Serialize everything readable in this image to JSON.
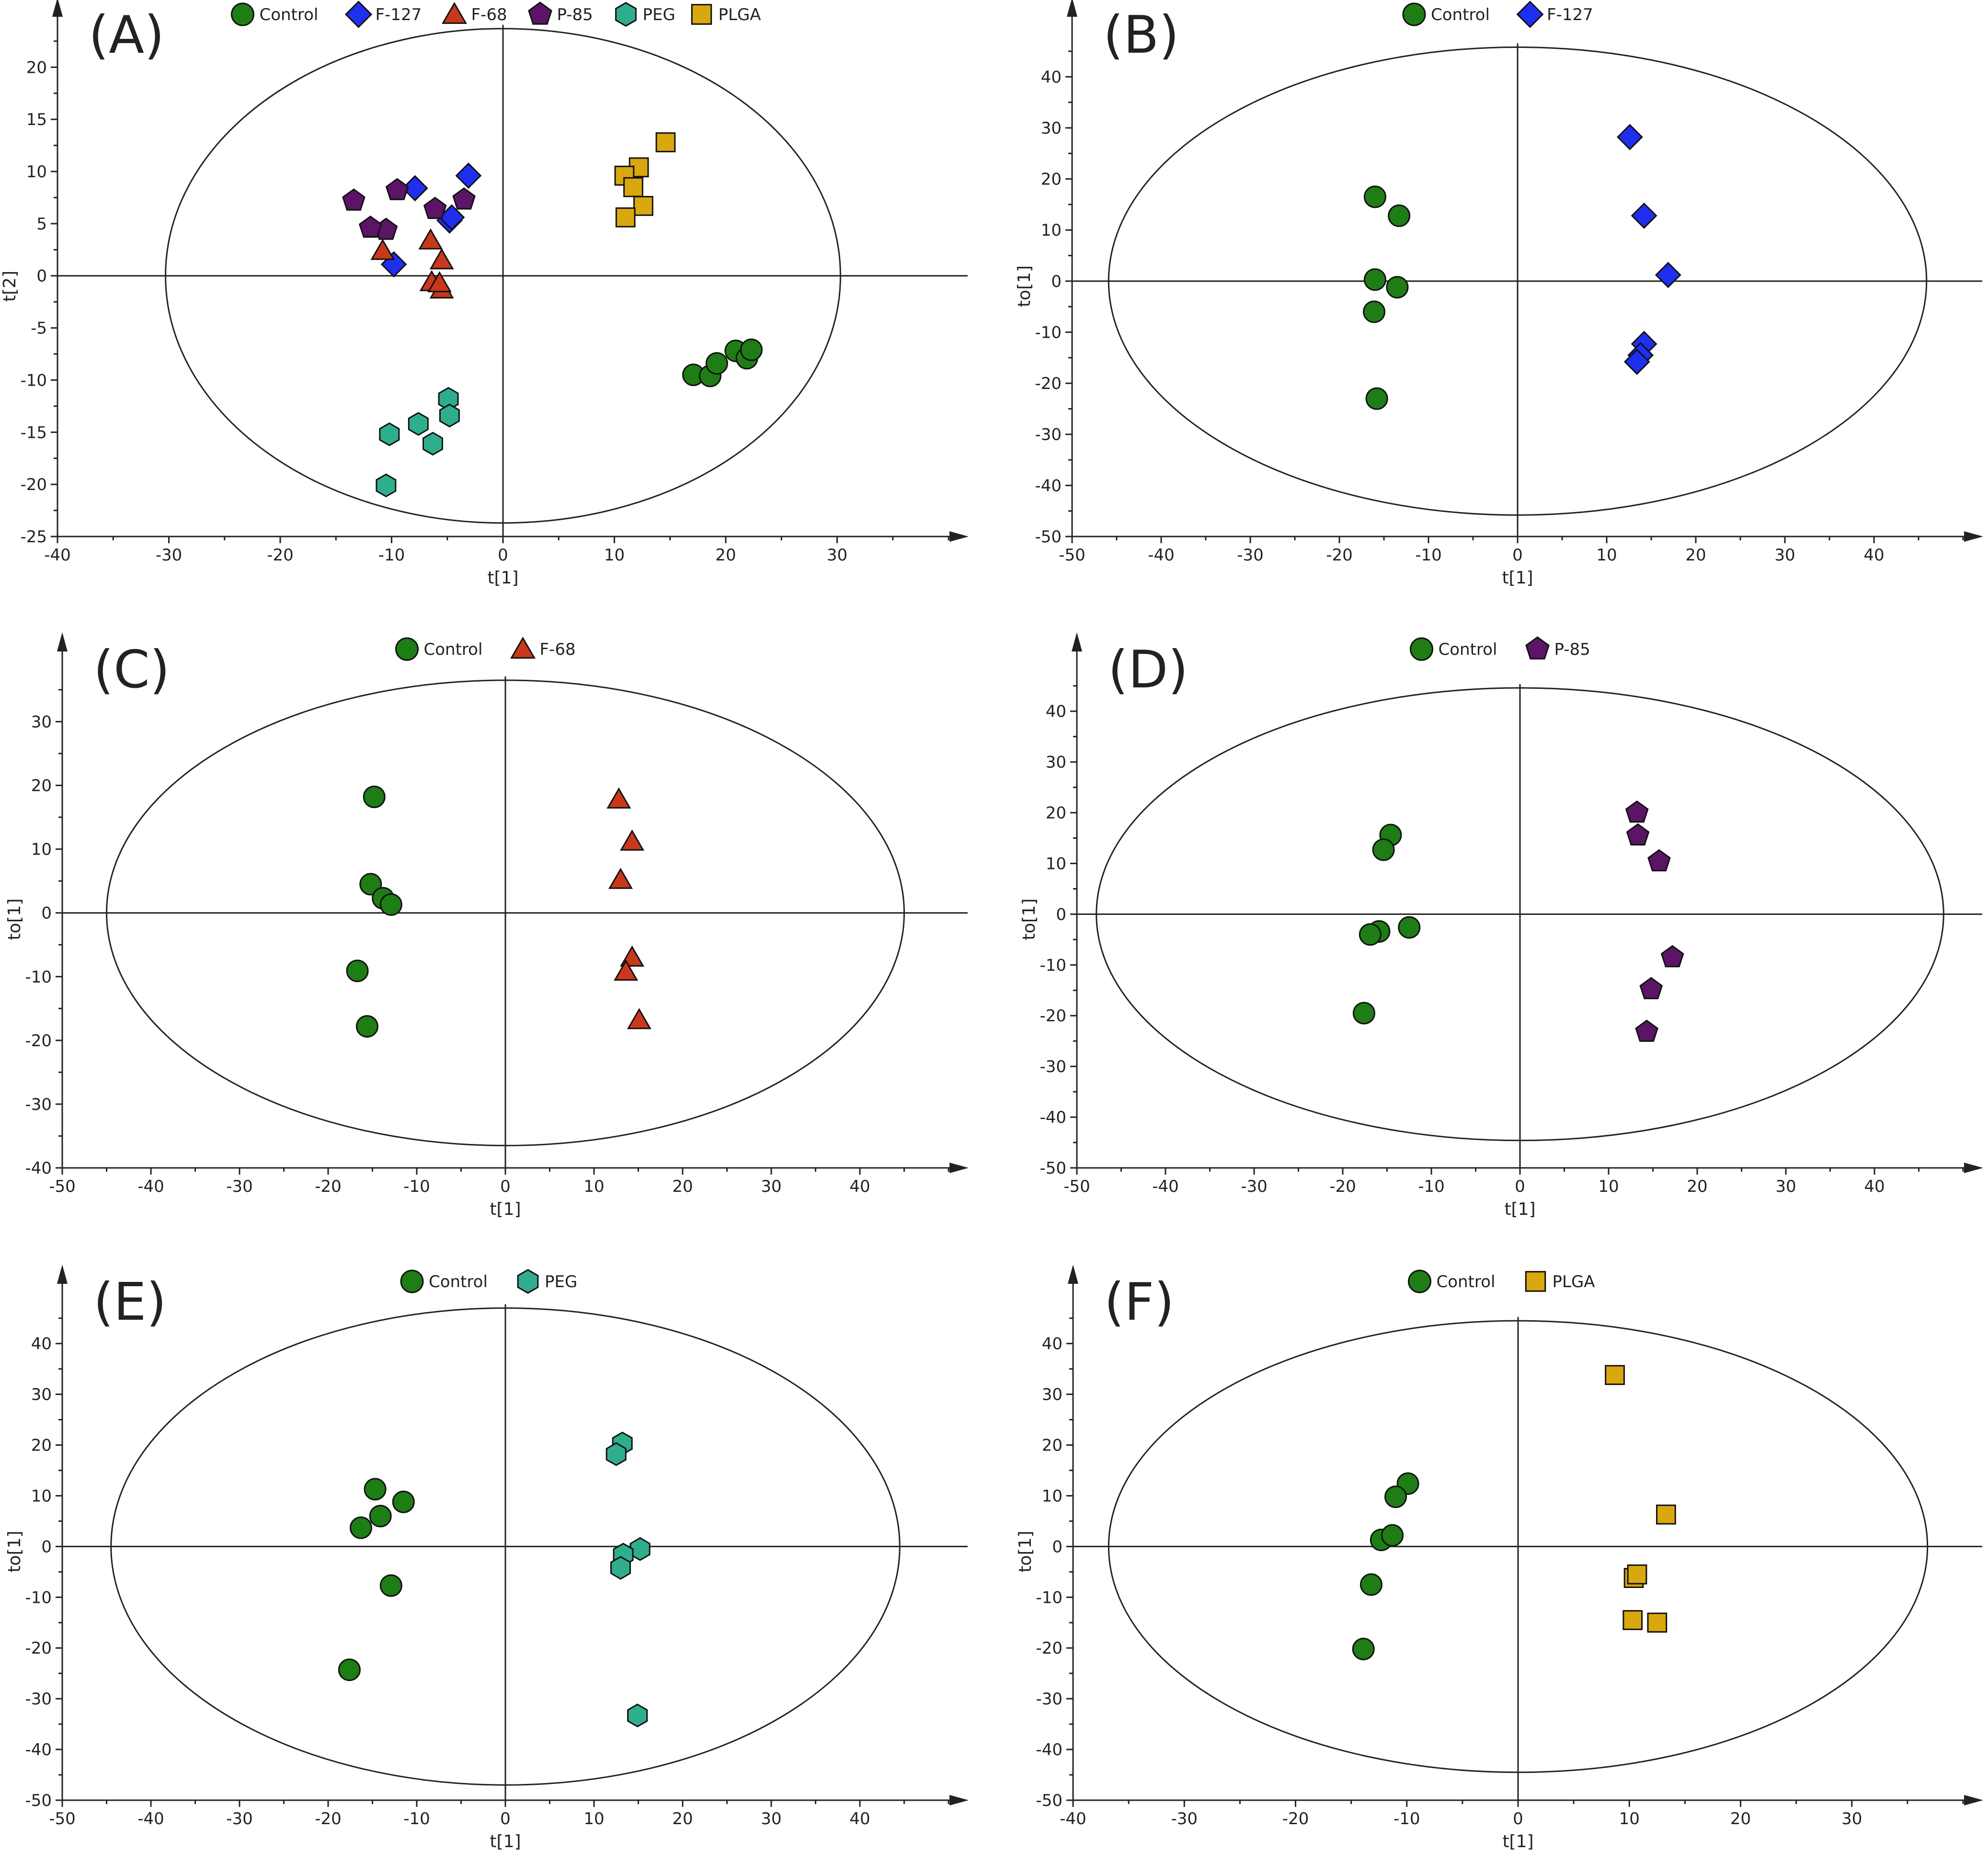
{
  "colors": {
    "Control": "#1e7d14",
    "F-127": "#1f2ff0",
    "F-68": "#c8381a",
    "P-85": "#5b1466",
    "PEG": "#2fae8e",
    "PLGA": "#d9a80e"
  },
  "shapes": {
    "Control": "circle",
    "F-127": "diamond",
    "F-68": "triangle",
    "P-85": "pentagon",
    "PEG": "hexagon",
    "PLGA": "square"
  },
  "chart_data": [
    {
      "type": "scatter",
      "label": "(A)",
      "xlabel": "t[1]",
      "ylabel": "t[2]",
      "xlim": [
        -40,
        40
      ],
      "ylim": [
        -25,
        23
      ],
      "xticks": [
        -40,
        -30,
        -20,
        -10,
        0,
        10,
        20,
        30
      ],
      "yticks": [
        -25,
        -20,
        -15,
        -10,
        -5,
        0,
        5,
        10,
        15,
        20
      ],
      "ellipse": {
        "a": 30.3,
        "b": 23.7
      },
      "legend": [
        "Control",
        "F-127",
        "F-68",
        "P-85",
        "PEG",
        "PLGA"
      ],
      "series": [
        {
          "name": "Control",
          "points": [
            [
              17.1,
              -9.5
            ],
            [
              18.6,
              -9.6
            ],
            [
              19.2,
              -8.4
            ],
            [
              20.9,
              -7.2
            ],
            [
              21.9,
              -7.9
            ],
            [
              22.3,
              -7.1
            ]
          ]
        },
        {
          "name": "F-127",
          "points": [
            [
              -3.1,
              9.6
            ],
            [
              -7.9,
              8.4
            ],
            [
              -4.8,
              5.3
            ],
            [
              -4.6,
              5.6
            ],
            [
              -9.8,
              1.1
            ]
          ]
        },
        {
          "name": "F-68",
          "points": [
            [
              -10.8,
              2.4
            ],
            [
              -6.5,
              3.4
            ],
            [
              -5.5,
              1.5
            ],
            [
              -6.4,
              -0.6
            ],
            [
              -5.5,
              -1.3
            ],
            [
              -5.7,
              -0.7
            ]
          ]
        },
        {
          "name": "P-85",
          "points": [
            [
              -13.4,
              7.2
            ],
            [
              -10.5,
              4.4
            ],
            [
              -11.9,
              4.6
            ],
            [
              -9.5,
              8.2
            ],
            [
              -6.1,
              6.4
            ],
            [
              -3.5,
              7.3
            ]
          ]
        },
        {
          "name": "PEG",
          "points": [
            [
              -4.9,
              -11.8
            ],
            [
              -4.8,
              -13.4
            ],
            [
              -7.6,
              -14.2
            ],
            [
              -10.2,
              -15.2
            ],
            [
              -6.3,
              -16.1
            ],
            [
              -10.5,
              -20.1
            ]
          ]
        },
        {
          "name": "PLGA",
          "points": [
            [
              14.6,
              12.8
            ],
            [
              12.2,
              10.4
            ],
            [
              10.9,
              9.6
            ],
            [
              11.7,
              8.5
            ],
            [
              12.6,
              6.7
            ],
            [
              11,
              5.6
            ]
          ]
        }
      ]
    },
    {
      "type": "scatter",
      "label": "(B)",
      "xlabel": "t[1]",
      "ylabel": "to[1]",
      "xlim": [
        -50,
        50
      ],
      "ylim": [
        -50,
        48
      ],
      "xticks": [
        -50,
        -40,
        -30,
        -20,
        -10,
        0,
        10,
        20,
        30,
        40
      ],
      "yticks": [
        -50,
        -40,
        -30,
        -20,
        -10,
        0,
        10,
        20,
        30,
        40
      ],
      "ellipse": {
        "a": 45.9,
        "b": 45.8
      },
      "legend": [
        "Control",
        "F-127"
      ],
      "series": [
        {
          "name": "Control",
          "points": [
            [
              -16,
              16.5
            ],
            [
              -13.3,
              12.8
            ],
            [
              -16,
              0.3
            ],
            [
              -13.5,
              -1.2
            ],
            [
              -16.1,
              -6
            ],
            [
              -15.8,
              -23
            ]
          ]
        },
        {
          "name": "F-127",
          "points": [
            [
              12.6,
              28.2
            ],
            [
              14.2,
              12.8
            ],
            [
              16.9,
              1.2
            ],
            [
              14.2,
              -12.3
            ],
            [
              13.8,
              -14.5
            ],
            [
              13.4,
              -15.8
            ]
          ]
        }
      ]
    },
    {
      "type": "scatter",
      "label": "(C)",
      "xlabel": "t[1]",
      "ylabel": "to[1]",
      "xlim": [
        -50,
        50
      ],
      "ylim": [
        -40,
        38
      ],
      "xticks": [
        -50,
        -40,
        -30,
        -20,
        -10,
        0,
        10,
        20,
        30,
        40
      ],
      "yticks": [
        -40,
        -30,
        -20,
        -10,
        0,
        10,
        20,
        30
      ],
      "ellipse": {
        "a": 45,
        "b": 36.5
      },
      "legend": [
        "Control",
        "F-68"
      ],
      "series": [
        {
          "name": "Control",
          "points": [
            [
              -14.8,
              18.2
            ],
            [
              -15.2,
              4.5
            ],
            [
              -13.8,
              2.3
            ],
            [
              -12.9,
              1.3
            ],
            [
              -16.7,
              -9.1
            ],
            [
              -15.6,
              -17.8
            ]
          ]
        },
        {
          "name": "F-68",
          "points": [
            [
              12.8,
              17.8
            ],
            [
              14.3,
              11.2
            ],
            [
              13,
              5.2
            ],
            [
              14.3,
              -7
            ],
            [
              13.6,
              -9.2
            ],
            [
              15.1,
              -16.8
            ]
          ]
        }
      ]
    },
    {
      "type": "scatter",
      "label": "(D)",
      "xlabel": "t[1]",
      "ylabel": "to[1]",
      "xlim": [
        -50,
        50
      ],
      "ylim": [
        -50,
        48
      ],
      "xticks": [
        -50,
        -40,
        -30,
        -20,
        -10,
        0,
        10,
        20,
        30,
        40
      ],
      "yticks": [
        -50,
        -40,
        -30,
        -20,
        -10,
        0,
        10,
        20,
        30,
        40
      ],
      "ellipse": {
        "a": 47.8,
        "b": 44.6
      },
      "legend": [
        "Control",
        "P-85"
      ],
      "series": [
        {
          "name": "Control",
          "points": [
            [
              -14.6,
              15.6
            ],
            [
              -15.4,
              12.7
            ],
            [
              -12.5,
              -2.6
            ],
            [
              -15.9,
              -3.4
            ],
            [
              -16.9,
              -4
            ],
            [
              -17.6,
              -19.5
            ]
          ]
        },
        {
          "name": "P-85",
          "points": [
            [
              13.2,
              20
            ],
            [
              13.3,
              15.5
            ],
            [
              15.7,
              10.4
            ],
            [
              17.2,
              -8.5
            ],
            [
              14.8,
              -14.8
            ],
            [
              14.3,
              -23.2
            ]
          ]
        }
      ]
    },
    {
      "type": "scatter",
      "label": "(E)",
      "xlabel": "t[1]",
      "ylabel": "to[1]",
      "xlim": [
        -50,
        50
      ],
      "ylim": [
        -50,
        48
      ],
      "xticks": [
        -50,
        -40,
        -30,
        -20,
        -10,
        0,
        10,
        20,
        30,
        40
      ],
      "yticks": [
        -50,
        -40,
        -30,
        -20,
        -10,
        0,
        10,
        20,
        30,
        40
      ],
      "ellipse": {
        "a": 44.5,
        "b": 47
      },
      "legend": [
        "Control",
        "PEG"
      ],
      "series": [
        {
          "name": "Control",
          "points": [
            [
              -14.7,
              11.3
            ],
            [
              -11.5,
              8.8
            ],
            [
              -14.1,
              6
            ],
            [
              -16.3,
              3.7
            ],
            [
              -12.9,
              -7.7
            ],
            [
              -17.6,
              -24.3
            ]
          ]
        },
        {
          "name": "PEG",
          "points": [
            [
              13.2,
              20.3
            ],
            [
              12.5,
              18.2
            ],
            [
              15.2,
              -0.5
            ],
            [
              13.3,
              -1.6
            ],
            [
              13,
              -4.2
            ],
            [
              14.9,
              -33.3
            ]
          ]
        }
      ]
    },
    {
      "type": "scatter",
      "label": "(F)",
      "xlabel": "t[1]",
      "ylabel": "to[1]",
      "xlim": [
        -40,
        40
      ],
      "ylim": [
        -50,
        48
      ],
      "xticks": [
        -40,
        -30,
        -20,
        -10,
        0,
        10,
        20,
        30
      ],
      "yticks": [
        -50,
        -40,
        -30,
        -20,
        -10,
        0,
        10,
        20,
        30,
        40
      ],
      "ellipse": {
        "a": 36.8,
        "b": 44.5
      },
      "legend": [
        "Control",
        "PLGA"
      ],
      "series": [
        {
          "name": "Control",
          "points": [
            [
              -9.9,
              12.4
            ],
            [
              -11,
              9.8
            ],
            [
              -12.3,
              1.3
            ],
            [
              -11.3,
              2.2
            ],
            [
              -13.2,
              -7.5
            ],
            [
              -13.9,
              -20.2
            ]
          ]
        },
        {
          "name": "PLGA",
          "points": [
            [
              8.7,
              33.8
            ],
            [
              13.3,
              6.3
            ],
            [
              10.4,
              -6.2
            ],
            [
              10.7,
              -5.5
            ],
            [
              10.3,
              -14.5
            ],
            [
              12.5,
              -15
            ]
          ]
        }
      ]
    }
  ]
}
